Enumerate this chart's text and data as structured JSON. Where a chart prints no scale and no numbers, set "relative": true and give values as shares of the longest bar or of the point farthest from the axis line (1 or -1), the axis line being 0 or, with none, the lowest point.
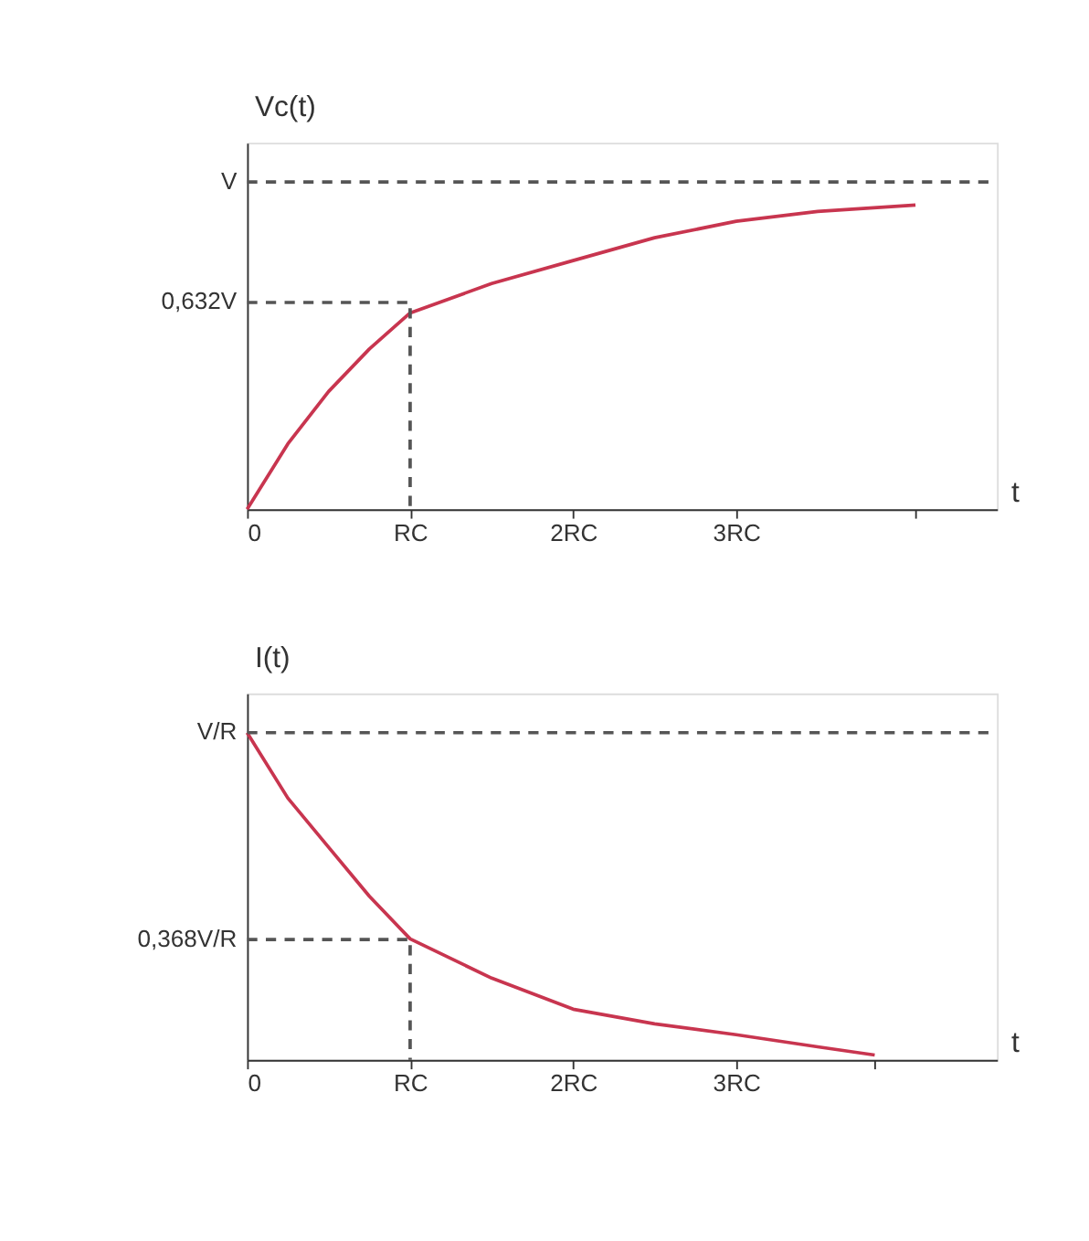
{
  "chart_data": [
    {
      "type": "line",
      "relative": true,
      "ylabel": "Vc(t)",
      "xlabel": "t",
      "xlim": [
        0,
        4.6
      ],
      "grid": false,
      "marker": "none",
      "xticks": [
        {
          "value": 0,
          "label": "0"
        },
        {
          "value": 1,
          "label": "RC"
        },
        {
          "value": 2,
          "label": "2RC"
        },
        {
          "value": 3,
          "label": "3RC"
        },
        {
          "value": 4.1,
          "label": null
        }
      ],
      "annotations": [
        "V",
        "0,632V"
      ],
      "series": [
        {
          "color": "#c8354f",
          "line_style": "solid",
          "x": [
            0,
            0.25,
            0.5,
            0.75,
            1,
            1.5,
            2,
            2.5,
            3,
            3.5,
            4.1
          ],
          "values": [
            0,
            0.2,
            0.36,
            0.49,
            0.6,
            0.69,
            0.76,
            0.83,
            0.88,
            0.91,
            0.93
          ]
        },
        {
          "color": "#555555",
          "line_style": "dashed",
          "x": [
            0,
            1,
            1
          ],
          "values": [
            0.632,
            0.632,
            0
          ]
        },
        {
          "color": "#555555",
          "line_style": "dashed",
          "x": [
            0,
            4.6
          ],
          "values": [
            1,
            1
          ]
        }
      ]
    },
    {
      "type": "line",
      "relative": true,
      "ylabel": "I(t)",
      "xlabel": "t",
      "xlim": [
        0,
        4.6
      ],
      "grid": false,
      "marker": "none",
      "xticks": [
        {
          "value": 0,
          "label": "0"
        },
        {
          "value": 1,
          "label": "RC"
        },
        {
          "value": 2,
          "label": "2RC"
        },
        {
          "value": 3,
          "label": "3RC"
        },
        {
          "value": 3.85,
          "label": null
        }
      ],
      "annotations": [
        "V/R",
        "0,368V/R"
      ],
      "series": [
        {
          "color": "#c8354f",
          "line_style": "solid",
          "x": [
            0,
            0.25,
            0.5,
            0.75,
            1,
            1.5,
            2,
            2.5,
            3,
            3.5,
            3.85
          ],
          "values": [
            1,
            0.8,
            0.65,
            0.5,
            0.37,
            0.25,
            0.155,
            0.11,
            0.077,
            0.04,
            0.015
          ]
        },
        {
          "color": "#555555",
          "line_style": "dashed",
          "x": [
            0,
            1,
            1
          ],
          "values": [
            0.368,
            0.368,
            0
          ]
        },
        {
          "color": "#555555",
          "line_style": "dashed",
          "x": [
            0,
            4.6
          ],
          "values": [
            1,
            1
          ]
        }
      ]
    }
  ]
}
